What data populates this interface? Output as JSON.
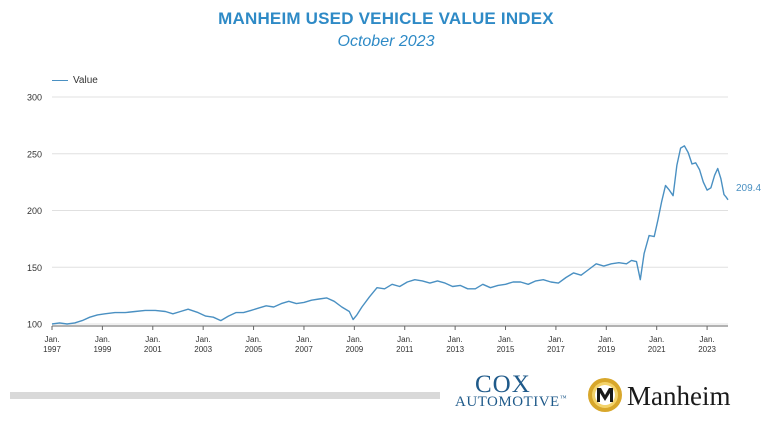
{
  "header": {
    "title": "MANHEIM USED VEHICLE VALUE INDEX",
    "subtitle": "October 2023"
  },
  "legend": {
    "label": "Value"
  },
  "chart_data": {
    "type": "line",
    "title": "MANHEIM USED VEHICLE VALUE INDEX",
    "subtitle": "October 2023",
    "xlabel": "",
    "ylabel": "",
    "ylim": [
      100,
      300
    ],
    "xlim": [
      1997.0,
      2023.83
    ],
    "yticks": [
      100,
      150,
      200,
      250,
      300
    ],
    "xticks": [
      {
        "x": 1997,
        "label1": "Jan.",
        "label2": "1997"
      },
      {
        "x": 1999,
        "label1": "Jan.",
        "label2": "1999"
      },
      {
        "x": 2001,
        "label1": "Jan.",
        "label2": "2001"
      },
      {
        "x": 2003,
        "label1": "Jan.",
        "label2": "2003"
      },
      {
        "x": 2005,
        "label1": "Jan.",
        "label2": "2005"
      },
      {
        "x": 2007,
        "label1": "Jan.",
        "label2": "2007"
      },
      {
        "x": 2009,
        "label1": "Jan.",
        "label2": "2009"
      },
      {
        "x": 2011,
        "label1": "Jan.",
        "label2": "2011"
      },
      {
        "x": 2013,
        "label1": "Jan.",
        "label2": "2013"
      },
      {
        "x": 2015,
        "label1": "Jan.",
        "label2": "2015"
      },
      {
        "x": 2017,
        "label1": "Jan.",
        "label2": "2017"
      },
      {
        "x": 2019,
        "label1": "Jan.",
        "label2": "2019"
      },
      {
        "x": 2021,
        "label1": "Jan.",
        "label2": "2021"
      },
      {
        "x": 2023,
        "label1": "Jan.",
        "label2": "2023"
      }
    ],
    "grid": true,
    "legend_position": "top-left",
    "color": "#4a90c2",
    "end_label": "209.4",
    "series": [
      {
        "name": "Value",
        "points": [
          [
            1997.0,
            100
          ],
          [
            1997.3,
            101
          ],
          [
            1997.6,
            100
          ],
          [
            1997.9,
            101
          ],
          [
            1998.2,
            103
          ],
          [
            1998.5,
            106
          ],
          [
            1998.8,
            108
          ],
          [
            1999.1,
            109
          ],
          [
            1999.5,
            110
          ],
          [
            1999.9,
            110
          ],
          [
            2000.3,
            111
          ],
          [
            2000.7,
            112
          ],
          [
            2001.1,
            112
          ],
          [
            2001.5,
            111
          ],
          [
            2001.8,
            109
          ],
          [
            2002.1,
            111
          ],
          [
            2002.4,
            113
          ],
          [
            2002.8,
            110
          ],
          [
            2003.1,
            107
          ],
          [
            2003.4,
            106
          ],
          [
            2003.7,
            103
          ],
          [
            2004.0,
            107
          ],
          [
            2004.3,
            110
          ],
          [
            2004.6,
            110
          ],
          [
            2004.9,
            112
          ],
          [
            2005.2,
            114
          ],
          [
            2005.5,
            116
          ],
          [
            2005.8,
            115
          ],
          [
            2006.1,
            118
          ],
          [
            2006.4,
            120
          ],
          [
            2006.7,
            118
          ],
          [
            2007.0,
            119
          ],
          [
            2007.3,
            121
          ],
          [
            2007.6,
            122
          ],
          [
            2007.9,
            123
          ],
          [
            2008.2,
            120
          ],
          [
            2008.5,
            115
          ],
          [
            2008.8,
            111
          ],
          [
            2008.95,
            104
          ],
          [
            2009.1,
            108
          ],
          [
            2009.3,
            115
          ],
          [
            2009.6,
            124
          ],
          [
            2009.9,
            132
          ],
          [
            2010.2,
            131
          ],
          [
            2010.5,
            135
          ],
          [
            2010.8,
            133
          ],
          [
            2011.1,
            137
          ],
          [
            2011.4,
            139
          ],
          [
            2011.7,
            138
          ],
          [
            2012.0,
            136
          ],
          [
            2012.3,
            138
          ],
          [
            2012.6,
            136
          ],
          [
            2012.9,
            133
          ],
          [
            2013.2,
            134
          ],
          [
            2013.5,
            131
          ],
          [
            2013.8,
            131
          ],
          [
            2014.1,
            135
          ],
          [
            2014.4,
            132
          ],
          [
            2014.7,
            134
          ],
          [
            2015.0,
            135
          ],
          [
            2015.3,
            137
          ],
          [
            2015.6,
            137
          ],
          [
            2015.9,
            135
          ],
          [
            2016.2,
            138
          ],
          [
            2016.5,
            139
          ],
          [
            2016.8,
            137
          ],
          [
            2017.1,
            136
          ],
          [
            2017.4,
            141
          ],
          [
            2017.7,
            145
          ],
          [
            2018.0,
            143
          ],
          [
            2018.3,
            148
          ],
          [
            2018.6,
            153
          ],
          [
            2018.9,
            151
          ],
          [
            2019.2,
            153
          ],
          [
            2019.5,
            154
          ],
          [
            2019.8,
            153
          ],
          [
            2020.0,
            156
          ],
          [
            2020.2,
            155
          ],
          [
            2020.35,
            139
          ],
          [
            2020.5,
            162
          ],
          [
            2020.7,
            178
          ],
          [
            2020.9,
            177
          ],
          [
            2021.05,
            192
          ],
          [
            2021.2,
            208
          ],
          [
            2021.35,
            222
          ],
          [
            2021.5,
            218
          ],
          [
            2021.65,
            213
          ],
          [
            2021.8,
            240
          ],
          [
            2021.95,
            255
          ],
          [
            2022.1,
            257
          ],
          [
            2022.25,
            251
          ],
          [
            2022.4,
            241
          ],
          [
            2022.55,
            242
          ],
          [
            2022.7,
            236
          ],
          [
            2022.85,
            225
          ],
          [
            2023.0,
            218
          ],
          [
            2023.15,
            220
          ],
          [
            2023.3,
            231
          ],
          [
            2023.42,
            237
          ],
          [
            2023.55,
            228
          ],
          [
            2023.67,
            214
          ],
          [
            2023.75,
            212
          ],
          [
            2023.83,
            209.4
          ]
        ]
      }
    ]
  },
  "footer": {
    "cox_line1": "COX",
    "cox_line2": "AUTOMOTIVE",
    "trademark": "™",
    "manheim_word": "Manheim"
  },
  "colors": {
    "title": "#2e8ac6",
    "line": "#4a90c2",
    "grid": "#e0e0e0",
    "cox": "#1f5a8a",
    "manheim_gold": "#d8a72b"
  }
}
